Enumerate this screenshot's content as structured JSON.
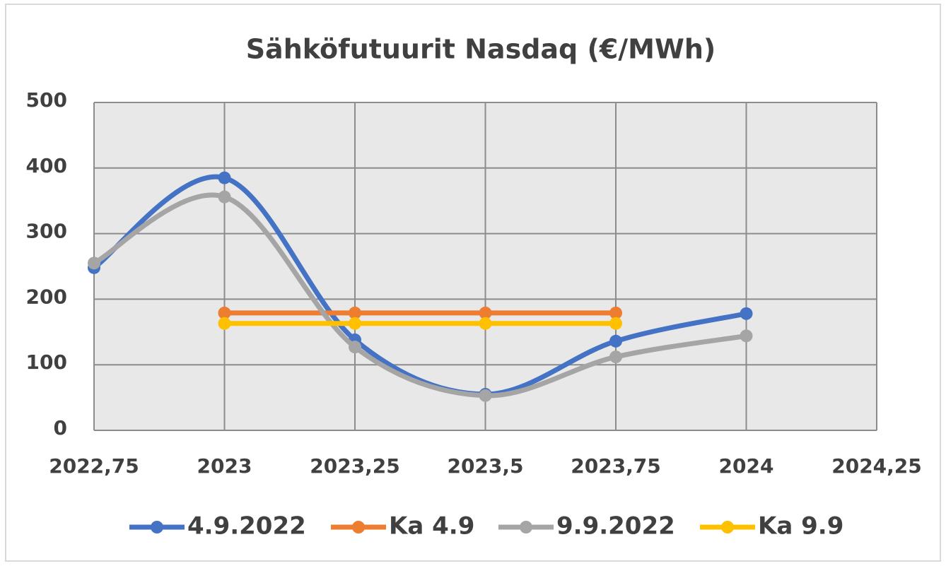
{
  "chart_data": {
    "type": "scatter",
    "title": "Sähköfutuurit Nasdaq (€/MWh)",
    "series": [
      {
        "name": "4.9.2022",
        "color": "#4472c4",
        "x": [
          2022.75,
          2023,
          2023.25,
          2023.5,
          2023.75,
          2024
        ],
        "values": [
          248,
          385,
          138,
          55,
          136,
          178
        ]
      },
      {
        "name": "Ka 4.9",
        "color": "#ed7d31",
        "x": [
          2023,
          2023.25,
          2023.5,
          2023.75
        ],
        "values": [
          179,
          179,
          179,
          179
        ]
      },
      {
        "name": "9.9.2022",
        "color": "#a5a5a5",
        "x": [
          2022.75,
          2023,
          2023.25,
          2023.5,
          2023.75,
          2024
        ],
        "values": [
          255,
          356,
          127,
          53,
          112,
          144
        ]
      },
      {
        "name": "Ka 9.9",
        "color": "#ffc000",
        "x": [
          2023,
          2023.25,
          2023.5,
          2023.75
        ],
        "values": [
          163,
          163,
          163,
          163
        ]
      }
    ],
    "xlim": [
      2022.75,
      2024.25
    ],
    "xticks": [
      {
        "value": 2022.75,
        "label": "2022,75"
      },
      2023,
      {
        "value": 2023.25,
        "label": "2023,25"
      },
      {
        "value": 2023.5,
        "label": "2023,5"
      },
      {
        "value": 2023.75,
        "label": "2023,75"
      },
      2024,
      {
        "value": 2024.25,
        "label": "2024,25"
      }
    ],
    "ylim": [
      0,
      500
    ],
    "yticks": [
      0,
      100,
      200,
      300,
      400,
      500
    ],
    "grid": true,
    "smooth": true,
    "legend": "bottom"
  }
}
